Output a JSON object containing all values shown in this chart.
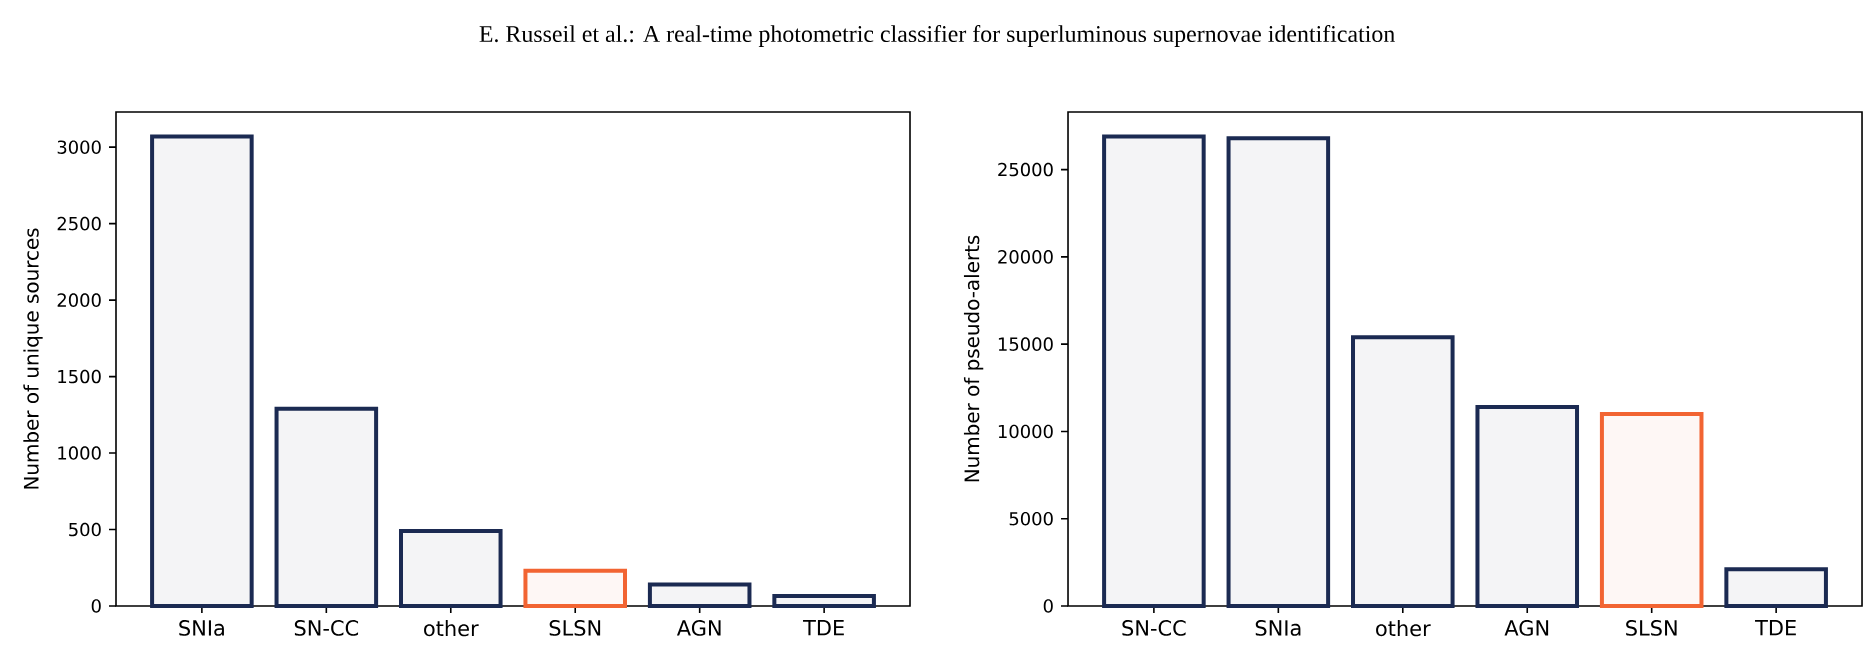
{
  "chart_data": [
    {
      "type": "bar",
      "annotations": [
        "E. Russeil et al.: A real-time photometric classifier for superluminous supernovae identification"
      ],
      "ylabel": "Number of unique sources",
      "categories": [
        "SNIa",
        "SN-CC",
        "other",
        "SLSN",
        "AGN",
        "TDE"
      ],
      "values": [
        3070,
        1290,
        490,
        230,
        140,
        65
      ],
      "colors": [
        "#1b2a52",
        "#1b2a52",
        "#1b2a52",
        "#f26432",
        "#1b2a52",
        "#1b2a52"
      ],
      "ylim": [
        0,
        3230
      ],
      "yticks": [
        0,
        500,
        1000,
        1500,
        2000,
        2500,
        3000
      ]
    },
    {
      "type": "bar",
      "ylabel": "Number of pseudo-alerts",
      "categories": [
        "SN-CC",
        "SNIa",
        "other",
        "AGN",
        "SLSN",
        "TDE"
      ],
      "values": [
        26900,
        26800,
        15400,
        11400,
        11000,
        2100
      ],
      "colors": [
        "#1b2a52",
        "#1b2a52",
        "#1b2a52",
        "#1b2a52",
        "#f26432",
        "#1b2a52"
      ],
      "ylim": [
        0,
        28300
      ],
      "yticks": [
        0,
        5000,
        10000,
        15000,
        20000,
        25000
      ]
    }
  ]
}
